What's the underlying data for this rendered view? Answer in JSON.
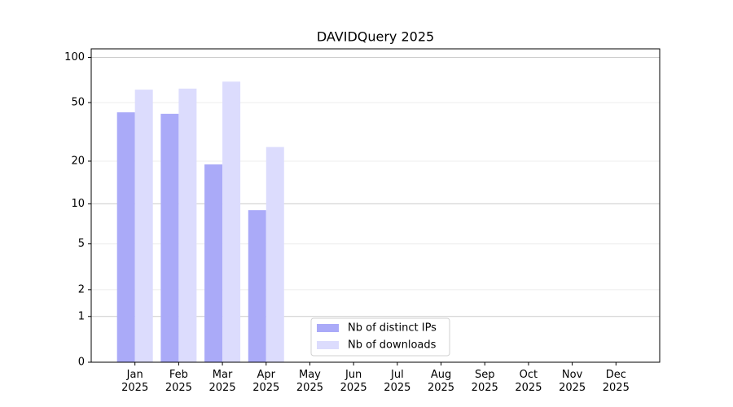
{
  "chart_data": {
    "type": "bar",
    "title": "DAVIDQuery 2025",
    "categories": [
      "Jan\n2025",
      "Feb\n2025",
      "Mar\n2025",
      "Apr\n2025",
      "May\n2025",
      "Jun\n2025",
      "Jul\n2025",
      "Aug\n2025",
      "Sep\n2025",
      "Oct\n2025",
      "Nov\n2025",
      "Dec\n2025"
    ],
    "series": [
      {
        "name": "Nb of distinct IPs",
        "color": "#aaaaf8",
        "values": [
          43,
          42,
          19,
          9,
          null,
          null,
          null,
          null,
          null,
          null,
          null,
          null
        ]
      },
      {
        "name": "Nb of downloads",
        "color": "#dcdcfd",
        "values": [
          61,
          62,
          69,
          25,
          null,
          null,
          null,
          null,
          null,
          null,
          null,
          null
        ]
      }
    ],
    "yscale": "log1p",
    "ylim": [
      0,
      114
    ],
    "yticks": [
      0,
      1,
      2,
      5,
      10,
      20,
      50,
      100
    ],
    "grid": true,
    "legend": "lower center"
  }
}
